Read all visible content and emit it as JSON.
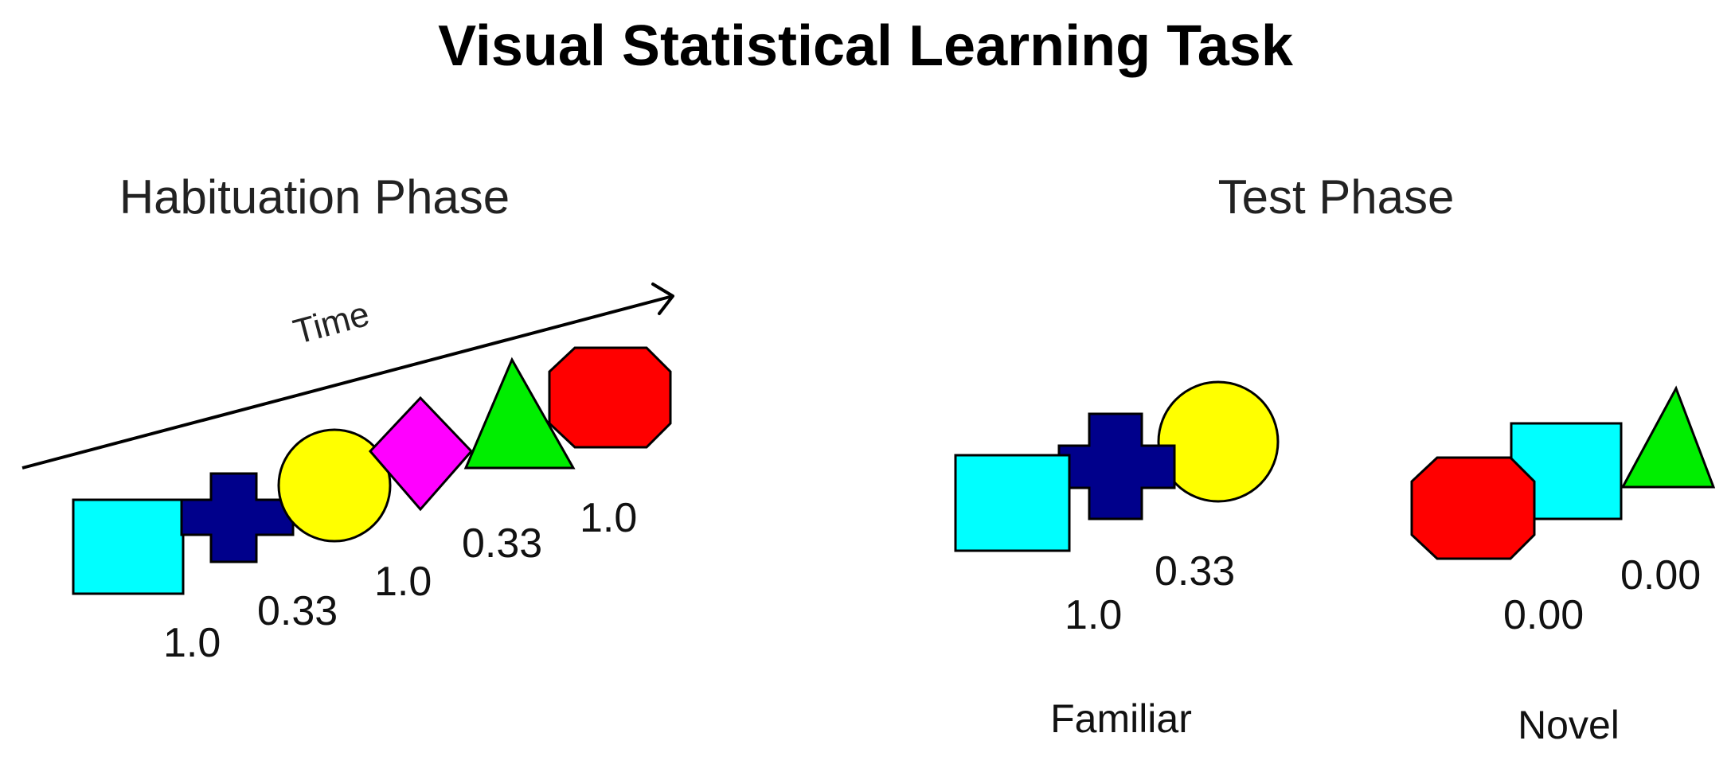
{
  "title": "Visual Statistical Learning Task",
  "habituation": {
    "heading": "Habituation Phase",
    "time_label": "Time",
    "sequence": [
      "cyan-square",
      "navy-cross",
      "yellow-circle",
      "magenta-diamond",
      "green-triangle",
      "red-octagon"
    ],
    "transition_probabilities": [
      "1.0",
      "0.33",
      "1.0",
      "0.33",
      "1.0"
    ]
  },
  "test": {
    "heading": "Test Phase",
    "familiar": {
      "label": "Familiar",
      "sequence": [
        "cyan-square",
        "navy-cross",
        "yellow-circle"
      ],
      "transition_probabilities": [
        "1.0",
        "0.33"
      ]
    },
    "novel": {
      "label": "Novel",
      "sequence": [
        "red-octagon",
        "cyan-square",
        "green-triangle"
      ],
      "transition_probabilities": [
        "0.00",
        "0.00"
      ]
    }
  },
  "colors": {
    "cyan": "#00ffff",
    "navy": "#00008b",
    "yellow": "#ffff00",
    "magenta": "#ff00ff",
    "green": "#00ee00",
    "red": "#ff0000"
  }
}
